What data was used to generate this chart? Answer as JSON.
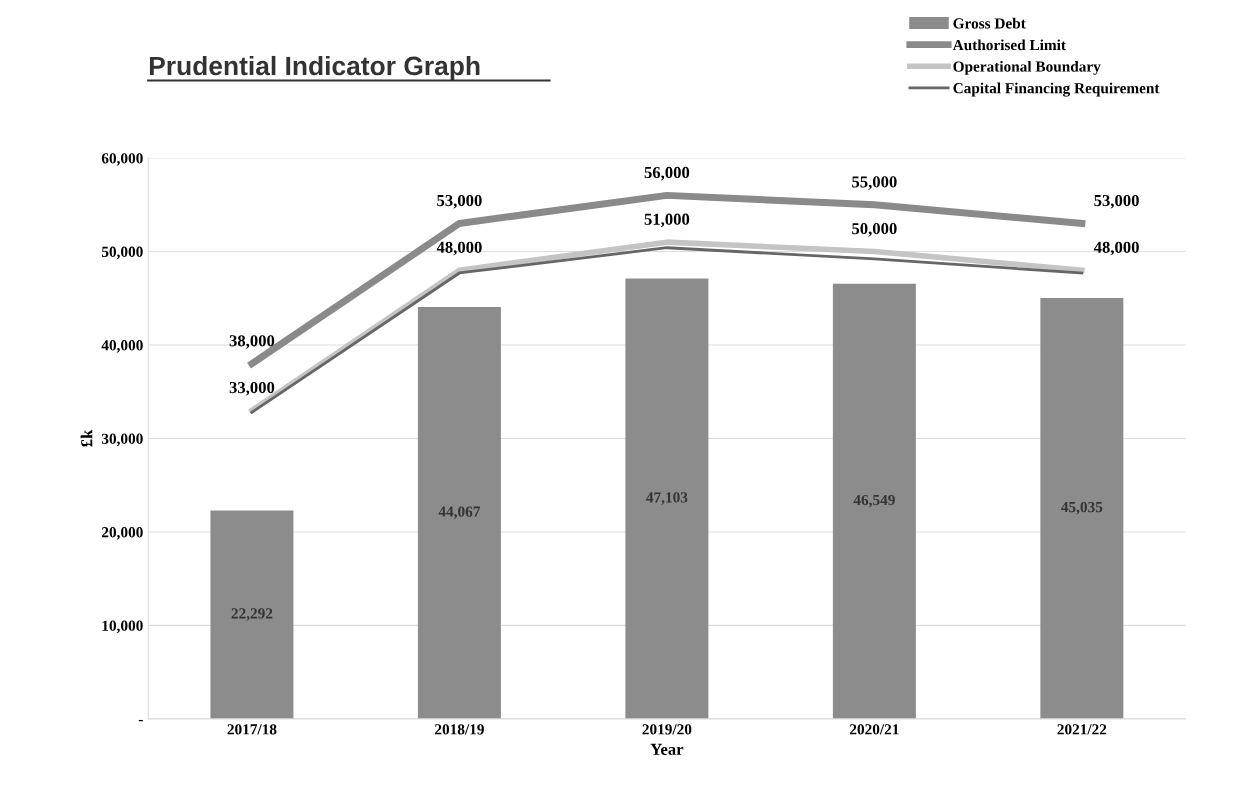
{
  "chart_data": {
    "type": "bar",
    "title": "Prudential Indicator Graph",
    "xlabel": "Year",
    "ylabel": "£k",
    "categories": [
      "2017/18",
      "2018/19",
      "2019/20",
      "2020/21",
      "2021/22"
    ],
    "series": [
      {
        "name": "Gross Debt",
        "color": "#8c8c8c",
        "values": [
          22292,
          44067,
          47103,
          46549,
          45035
        ],
        "value_labels": [
          "22,292",
          "44,067",
          "47,103",
          "46,549",
          "45,035"
        ]
      },
      {
        "name": "Authorised Limit",
        "type": "line",
        "color": "#8a8a8a",
        "values": [
          38000,
          53000,
          56000,
          55000,
          53000
        ],
        "value_labels": [
          "38,000",
          "53,000",
          "56,000",
          "55,000",
          "53,000"
        ]
      },
      {
        "name": "Operational Boundary",
        "type": "line",
        "color": "#c4c4c4",
        "values": [
          33000,
          48000,
          51000,
          50000,
          48000
        ],
        "value_labels": [
          "33,000",
          "48,000",
          "51,000",
          "50,000",
          "48,000"
        ]
      },
      {
        "name": "Capital Financing Requirement",
        "type": "line",
        "color": "#666666",
        "values": [
          32800,
          47700,
          50400,
          49200,
          47700
        ]
      }
    ],
    "ylim": [
      0,
      60000
    ],
    "yticks": [
      {
        "value": 0,
        "label": "-"
      },
      {
        "value": 10000,
        "label": "10,000"
      },
      {
        "value": 20000,
        "label": "20,000"
      },
      {
        "value": 30000,
        "label": "30,000"
      },
      {
        "value": 40000,
        "label": "40,000"
      },
      {
        "value": 50000,
        "label": "50,000"
      },
      {
        "value": 60000,
        "label": "60,000"
      }
    ],
    "grid": "y",
    "legend": "top right"
  }
}
